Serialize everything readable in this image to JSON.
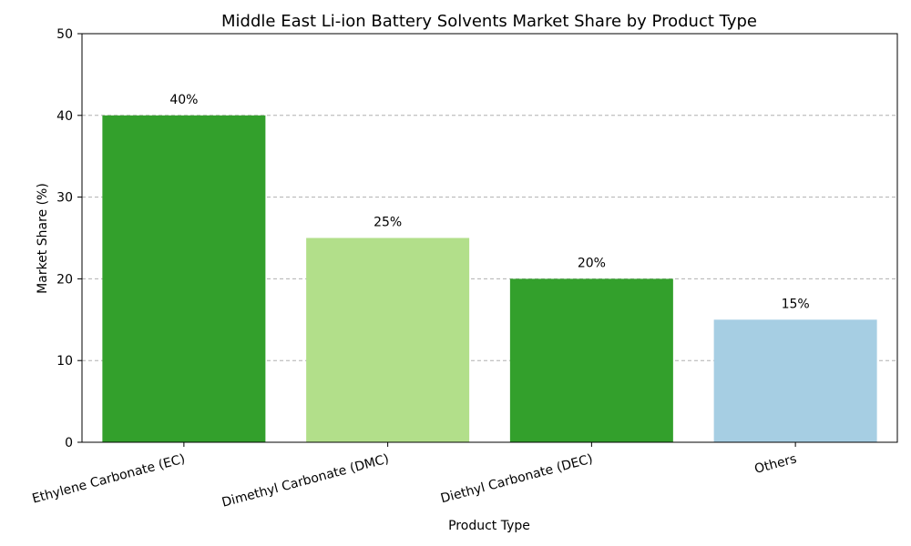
{
  "chart_data": {
    "type": "bar",
    "title": "Middle East Li-ion Battery Solvents Market Share by Product Type",
    "xlabel": "Product Type",
    "ylabel": "Market Share (%)",
    "categories": [
      "Ethylene Carbonate (EC)",
      "Dimethyl Carbonate (DMC)",
      "Diethyl Carbonate (DEC)",
      "Others"
    ],
    "values": [
      40,
      25,
      20,
      15
    ],
    "value_labels": [
      "40%",
      "25%",
      "20%",
      "15%"
    ],
    "bar_colors": [
      "#33a02c",
      "#b2df8a",
      "#33a02c",
      "#a6cee3"
    ],
    "ylim": [
      0,
      50
    ],
    "yticks": [
      0,
      10,
      20,
      30,
      40,
      50
    ],
    "ytick_labels": [
      "0",
      "10",
      "20",
      "30",
      "40",
      "50"
    ],
    "grid": "y-dashed",
    "legend": "none"
  }
}
